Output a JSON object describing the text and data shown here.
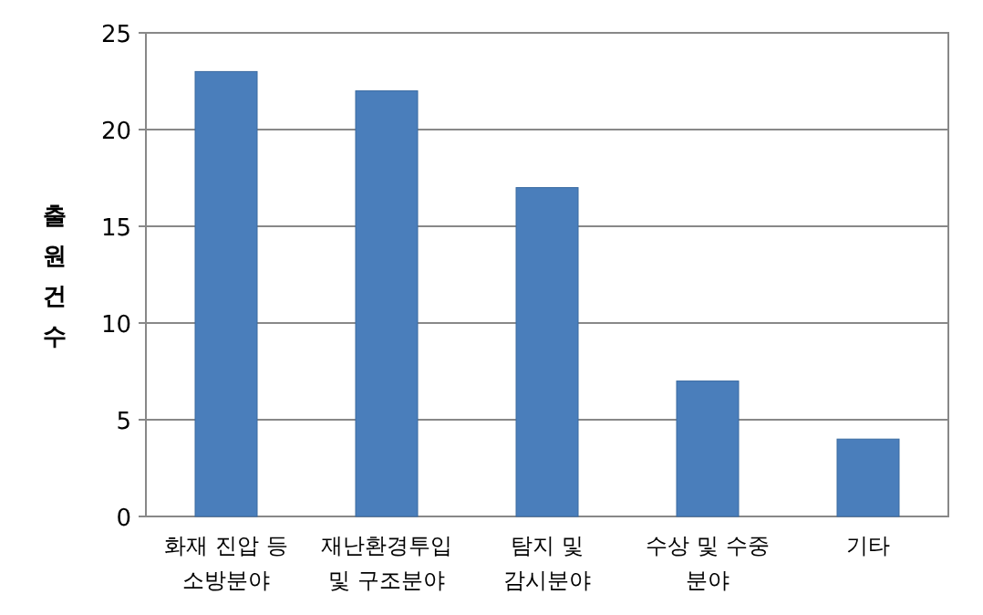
{
  "chart_data": {
    "type": "bar",
    "ylabel": "출원건수",
    "categories": [
      "화재 진압 등 소방분야",
      "재난환경투입 및 구조분야",
      "탐지 및 감시분야",
      "수상 및 수중 분야",
      "기타"
    ],
    "values": [
      23,
      22,
      17,
      7,
      4
    ],
    "color": "#4a7ebb",
    "ylim": [
      0,
      25
    ],
    "yticks": [
      0,
      5,
      10,
      15,
      20,
      25
    ],
    "grid": "y"
  }
}
